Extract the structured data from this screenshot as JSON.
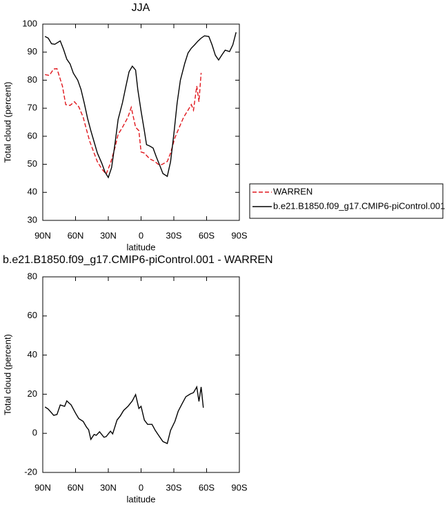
{
  "chart_data": [
    {
      "type": "line",
      "title": "JJA",
      "x_label": "latitude",
      "y_label": "Total cloud (percent)",
      "xlim": [
        90,
        -90
      ],
      "xticks": [
        {
          "value": 90,
          "label": "90N"
        },
        {
          "value": 60,
          "label": "60N"
        },
        {
          "value": 30,
          "label": "30N"
        },
        0,
        {
          "value": -30,
          "label": "30S"
        },
        {
          "value": -60,
          "label": "60S"
        },
        {
          "value": -90,
          "label": "90S"
        }
      ],
      "ylim": [
        30,
        100
      ],
      "yticks": [
        30,
        40,
        50,
        60,
        70,
        80,
        90,
        100
      ],
      "legend": "outside-right",
      "series": [
        {
          "name": "WARREN",
          "color": "#e0151b",
          "line_style": "dashed",
          "x": [
            88,
            84,
            80,
            77,
            72,
            69,
            65,
            61,
            57,
            53,
            50,
            47,
            43,
            40,
            36,
            32,
            28,
            24,
            21,
            17,
            12,
            9,
            5,
            2,
            0,
            -3,
            -8,
            -12,
            -16,
            -19,
            -24,
            -27,
            -31,
            -35,
            -39,
            -43,
            -46,
            -48,
            -51,
            -53,
            -55
          ],
          "values": [
            82,
            81.7,
            84,
            84.1,
            77.9,
            71.3,
            71,
            72.3,
            70.5,
            66.8,
            62.4,
            58.2,
            54,
            50.9,
            48.4,
            46.5,
            50.4,
            55.8,
            60.7,
            63.2,
            66.8,
            70.3,
            63.2,
            62,
            54.4,
            54,
            51.9,
            51.2,
            49.9,
            49.9,
            51,
            54,
            59.5,
            63.2,
            66.8,
            69.3,
            71.3,
            69.3,
            77.9,
            72.3,
            82.6
          ]
        },
        {
          "name": "b.e21.B1850.f09_g17.CMIP6-piControl.001",
          "color": "#000000",
          "line_style": "solid",
          "x": [
            88,
            85,
            82,
            79,
            74,
            71,
            68,
            65,
            62,
            58,
            55,
            52,
            49,
            46,
            43,
            40,
            36,
            33,
            30,
            27,
            24,
            21,
            17,
            14,
            11,
            8,
            5,
            3,
            0,
            -3,
            -5,
            -8,
            -11,
            -14,
            -17,
            -20,
            -24,
            -27,
            -30,
            -33,
            -36,
            -40,
            -43,
            -46,
            -49,
            -52,
            -55,
            -58,
            -62,
            -65,
            -68,
            -71,
            -74,
            -77,
            -81,
            -84,
            -87
          ],
          "values": [
            95.6,
            95,
            93,
            92.8,
            94,
            91,
            87.5,
            85.8,
            82.5,
            80,
            76.7,
            71.8,
            66.4,
            62,
            58,
            54,
            50.4,
            47.2,
            45.3,
            48.8,
            57,
            66,
            72,
            77.6,
            83,
            85,
            83.6,
            76.7,
            69,
            62,
            57,
            56.5,
            55.8,
            52.6,
            49.7,
            46.7,
            45.7,
            50.9,
            60.7,
            71.8,
            80,
            86,
            89.7,
            91.4,
            92.6,
            93.9,
            95,
            95.8,
            95.6,
            92.6,
            88.9,
            87.2,
            89,
            90.7,
            90.2,
            92.6,
            97.1
          ]
        }
      ]
    },
    {
      "type": "line",
      "title": "b.e21.B1850.f09_g17.CMIP6-piControl.001 - WARREN",
      "x_label": "latitude",
      "y_label": "Total cloud (percent)",
      "xlim": [
        90,
        -90
      ],
      "xticks": [
        {
          "value": 90,
          "label": "90N"
        },
        {
          "value": 60,
          "label": "60N"
        },
        {
          "value": 30,
          "label": "30N"
        },
        0,
        {
          "value": -30,
          "label": "30S"
        },
        {
          "value": -60,
          "label": "60S"
        },
        {
          "value": -90,
          "label": "90S"
        }
      ],
      "ylim": [
        -20,
        80
      ],
      "yticks": [
        -20,
        0,
        20,
        40,
        60,
        80
      ],
      "series": [
        {
          "color": "#000000",
          "line_style": "solid",
          "x": [
            88,
            85,
            80,
            77,
            74,
            70,
            68,
            64,
            60,
            57,
            53,
            50,
            48,
            46,
            43,
            41,
            38,
            34,
            32,
            28,
            26,
            22,
            19,
            16,
            12,
            8,
            5,
            2,
            0,
            -3,
            -6,
            -10,
            -13,
            -16,
            -20,
            -24,
            -27,
            -31,
            -34,
            -38,
            -41,
            -45,
            -48,
            -51,
            -53,
            -55,
            -57
          ],
          "values": [
            13.5,
            12.4,
            9.2,
            9.6,
            14.5,
            13.8,
            16.6,
            14.5,
            10.3,
            7.5,
            6.1,
            3.2,
            1.8,
            -3.1,
            -0.6,
            -1,
            0.8,
            -2,
            -1.7,
            1.1,
            -0.3,
            6.8,
            8.9,
            11.7,
            13.8,
            16.6,
            19.8,
            12.7,
            13.8,
            6.8,
            4.6,
            4.6,
            1.5,
            -1,
            -4.2,
            -5.2,
            1.5,
            6.1,
            11.3,
            15.6,
            18.7,
            20.1,
            20.8,
            23.7,
            16.3,
            23.7,
            13.1
          ]
        }
      ]
    }
  ]
}
